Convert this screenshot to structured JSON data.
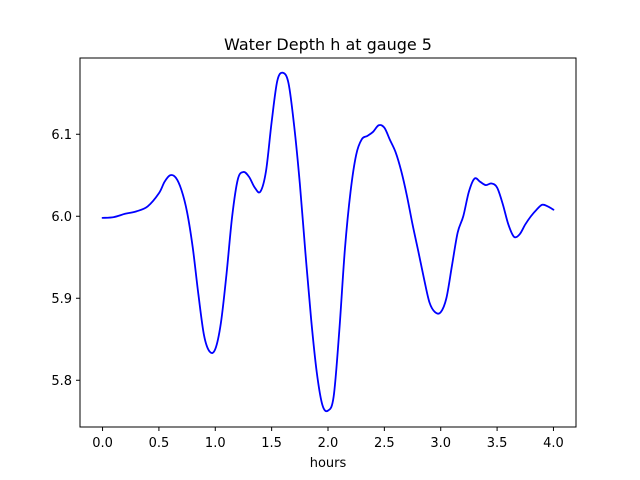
{
  "chart_data": {
    "type": "line",
    "title": "Water Depth h at gauge 5",
    "xlabel": "hours",
    "ylabel": "",
    "xlim": [
      -0.2,
      4.2
    ],
    "ylim": [
      5.743,
      6.193
    ],
    "xticks": [
      0.0,
      0.5,
      1.0,
      1.5,
      2.0,
      2.5,
      3.0,
      3.5,
      4.0
    ],
    "xtick_labels": [
      "0.0",
      "0.5",
      "1.0",
      "1.5",
      "2.0",
      "2.5",
      "3.0",
      "3.5",
      "4.0"
    ],
    "yticks": [
      5.8,
      5.9,
      6.0,
      6.1
    ],
    "ytick_labels": [
      "5.8",
      "5.9",
      "6.0",
      "6.1"
    ],
    "grid": false,
    "series": [
      {
        "color": "#0000ff",
        "x": [
          0.0,
          0.1,
          0.2,
          0.3,
          0.4,
          0.5,
          0.55,
          0.6,
          0.65,
          0.7,
          0.75,
          0.8,
          0.85,
          0.9,
          0.95,
          1.0,
          1.05,
          1.1,
          1.15,
          1.2,
          1.25,
          1.3,
          1.35,
          1.4,
          1.45,
          1.5,
          1.55,
          1.6,
          1.65,
          1.7,
          1.75,
          1.8,
          1.85,
          1.9,
          1.95,
          2.0,
          2.05,
          2.1,
          2.15,
          2.2,
          2.25,
          2.3,
          2.35,
          2.4,
          2.45,
          2.5,
          2.55,
          2.6,
          2.65,
          2.7,
          2.75,
          2.8,
          2.85,
          2.9,
          2.95,
          3.0,
          3.05,
          3.1,
          3.15,
          3.2,
          3.25,
          3.3,
          3.35,
          3.4,
          3.45,
          3.5,
          3.55,
          3.6,
          3.65,
          3.7,
          3.75,
          3.8,
          3.85,
          3.9,
          3.95,
          4.0
        ],
        "y": [
          5.998,
          5.999,
          6.003,
          6.006,
          6.012,
          6.028,
          6.042,
          6.05,
          6.047,
          6.032,
          6.005,
          5.962,
          5.905,
          5.855,
          5.835,
          5.838,
          5.87,
          5.93,
          6.0,
          6.045,
          6.054,
          6.048,
          6.035,
          6.03,
          6.055,
          6.115,
          6.165,
          6.175,
          6.162,
          6.11,
          6.04,
          5.955,
          5.875,
          5.81,
          5.77,
          5.763,
          5.78,
          5.86,
          5.96,
          6.03,
          6.075,
          6.094,
          6.098,
          6.103,
          6.111,
          6.108,
          6.093,
          6.078,
          6.055,
          6.025,
          5.99,
          5.958,
          5.925,
          5.895,
          5.883,
          5.883,
          5.9,
          5.94,
          5.98,
          6.0,
          6.03,
          6.046,
          6.042,
          6.038,
          6.04,
          6.035,
          6.015,
          5.99,
          5.975,
          5.978,
          5.99,
          6.0,
          6.008,
          6.014,
          6.012,
          6.008
        ]
      }
    ]
  }
}
